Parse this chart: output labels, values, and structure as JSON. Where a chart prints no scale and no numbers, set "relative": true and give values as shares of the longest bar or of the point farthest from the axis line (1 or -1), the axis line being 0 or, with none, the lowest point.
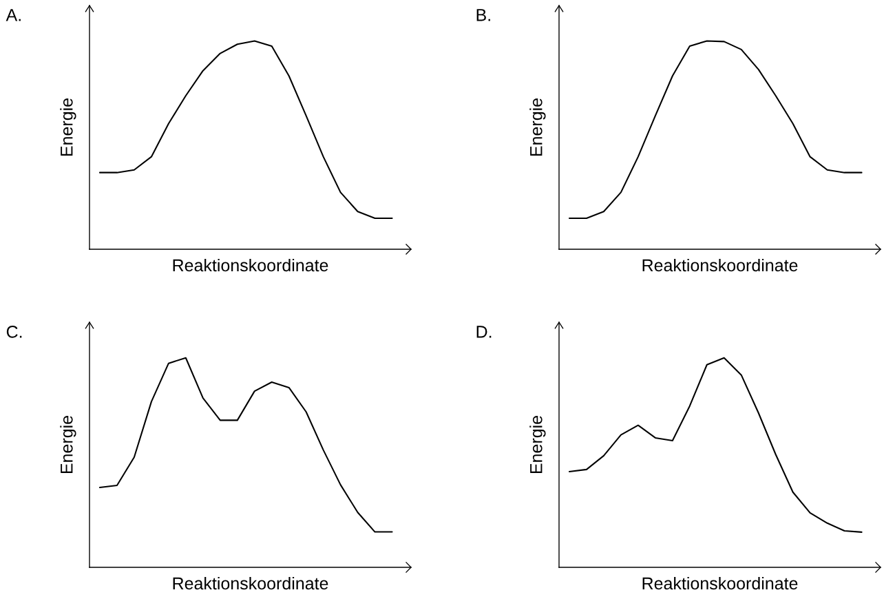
{
  "chart_data": [
    {
      "type": "line",
      "title": "A.",
      "xlabel": "Reaktionskoordinate",
      "ylabel": "Energie",
      "relative": true,
      "tick_labels": false,
      "grid": false,
      "color": "#000000",
      "categories": [
        null,
        null,
        null,
        null,
        null,
        null,
        null,
        null,
        null,
        null,
        null,
        null,
        null,
        null,
        null,
        null,
        null,
        null
      ],
      "values": [
        0.368,
        0.368,
        0.381,
        0.444,
        0.603,
        0.737,
        0.857,
        0.94,
        0.984,
        1,
        0.975,
        0.832,
        0.641,
        0.444,
        0.273,
        0.181,
        0.149,
        0.149
      ]
    },
    {
      "type": "line",
      "title": "B.",
      "xlabel": "Reaktionskoordinate",
      "ylabel": "Energie",
      "relative": true,
      "tick_labels": false,
      "grid": false,
      "color": "#000000",
      "categories": [
        null,
        null,
        null,
        null,
        null,
        null,
        null,
        null,
        null,
        null,
        null,
        null,
        null,
        null,
        null,
        null,
        null,
        null
      ],
      "values": [
        0.149,
        0.149,
        0.181,
        0.273,
        0.444,
        0.641,
        0.832,
        0.975,
        1,
        0.997,
        0.959,
        0.863,
        0.737,
        0.603,
        0.444,
        0.381,
        0.368,
        0.368
      ]
    },
    {
      "type": "line",
      "title": "C.",
      "xlabel": "Reaktionskoordinate",
      "ylabel": "Energie",
      "relative": true,
      "tick_labels": false,
      "grid": false,
      "color": "#000000",
      "categories": [
        null,
        null,
        null,
        null,
        null,
        null,
        null,
        null,
        null,
        null,
        null,
        null,
        null,
        null,
        null,
        null,
        null,
        null
      ],
      "values": [
        0.381,
        0.391,
        0.526,
        0.791,
        0.974,
        1,
        0.808,
        0.702,
        0.702,
        0.841,
        0.884,
        0.858,
        0.742,
        0.56,
        0.394,
        0.262,
        0.169,
        0.169
      ]
    },
    {
      "type": "line",
      "title": "D.",
      "xlabel": "Reaktionskoordinate",
      "ylabel": "Energie",
      "relative": true,
      "tick_labels": false,
      "grid": false,
      "color": "#000000",
      "categories": [
        null,
        null,
        null,
        null,
        null,
        null,
        null,
        null,
        null,
        null,
        null,
        null,
        null,
        null,
        null,
        null,
        null,
        null
      ],
      "values": [
        0.457,
        0.467,
        0.533,
        0.632,
        0.678,
        0.618,
        0.605,
        0.77,
        0.967,
        1,
        0.918,
        0.737,
        0.539,
        0.359,
        0.26,
        0.211,
        0.174,
        0.168
      ]
    }
  ]
}
